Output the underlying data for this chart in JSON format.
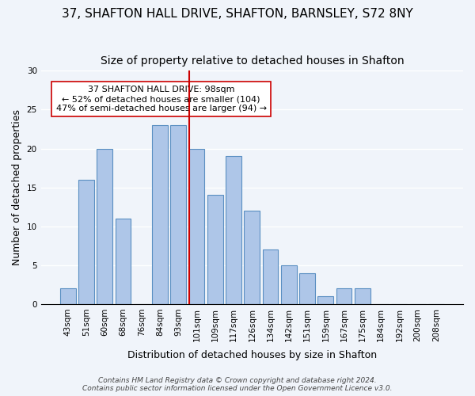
{
  "title": "37, SHAFTON HALL DRIVE, SHAFTON, BARNSLEY, S72 8NY",
  "subtitle": "Size of property relative to detached houses in Shafton",
  "xlabel": "Distribution of detached houses by size in Shafton",
  "ylabel": "Number of detached properties",
  "bar_labels": [
    "43sqm",
    "51sqm",
    "60sqm",
    "68sqm",
    "76sqm",
    "84sqm",
    "93sqm",
    "101sqm",
    "109sqm",
    "117sqm",
    "126sqm",
    "134sqm",
    "142sqm",
    "151sqm",
    "159sqm",
    "167sqm",
    "175sqm",
    "184sqm",
    "192sqm",
    "200sqm",
    "208sqm"
  ],
  "bar_values": [
    2,
    16,
    20,
    11,
    0,
    23,
    23,
    20,
    14,
    19,
    12,
    7,
    5,
    4,
    1,
    2,
    2,
    0,
    0,
    0,
    0
  ],
  "bar_color": "#aec6e8",
  "bar_edge_color": "#5a8fc2",
  "reference_line_x_label": "101sqm",
  "reference_line_color": "#cc0000",
  "annotation_text": "37 SHAFTON HALL DRIVE: 98sqm\n← 52% of detached houses are smaller (104)\n47% of semi-detached houses are larger (94) →",
  "annotation_box_color": "#ffffff",
  "annotation_box_edge_color": "#cc0000",
  "ylim": [
    0,
    30
  ],
  "yticks": [
    0,
    5,
    10,
    15,
    20,
    25,
    30
  ],
  "footer_line1": "Contains HM Land Registry data © Crown copyright and database right 2024.",
  "footer_line2": "Contains public sector information licensed under the Open Government Licence v3.0.",
  "background_color": "#f0f4fa",
  "title_fontsize": 11,
  "subtitle_fontsize": 10,
  "axis_label_fontsize": 9,
  "tick_fontsize": 7.5,
  "footer_fontsize": 6.5,
  "annotation_fontsize": 8
}
